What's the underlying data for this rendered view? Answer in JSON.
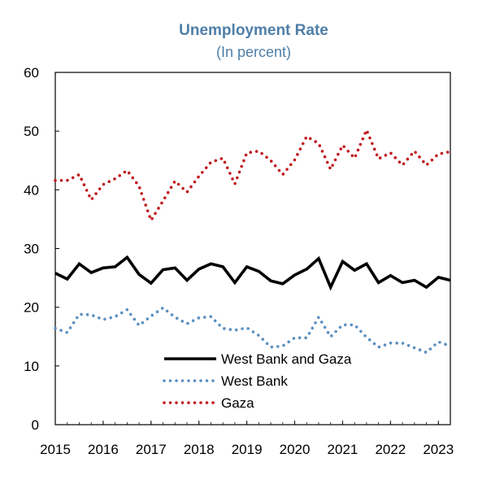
{
  "chart_data": {
    "type": "line",
    "title": "Unemployment Rate",
    "subtitle": "(In percent)",
    "xlabel": "",
    "ylabel": "",
    "ylim": [
      0,
      60
    ],
    "yticks": [
      0,
      10,
      20,
      30,
      40,
      50,
      60
    ],
    "xlim": [
      2015,
      2023.25
    ],
    "xticks": [
      "2015",
      "2016",
      "2017",
      "2018",
      "2019",
      "2020",
      "2021",
      "2022",
      "2023"
    ],
    "grid": false,
    "legend_position": "bottom-center",
    "series": [
      {
        "name": "West Bank and Gaza",
        "color": "#000000",
        "style": "solid",
        "x": [
          2015.0,
          2015.25,
          2015.5,
          2015.75,
          2016.0,
          2016.25,
          2016.5,
          2016.75,
          2017.0,
          2017.25,
          2017.5,
          2017.75,
          2018.0,
          2018.25,
          2018.5,
          2018.75,
          2019.0,
          2019.25,
          2019.5,
          2019.75,
          2020.0,
          2020.25,
          2020.5,
          2020.75,
          2021.0,
          2021.25,
          2021.5,
          2021.75,
          2022.0,
          2022.25,
          2022.5,
          2022.75,
          2023.0,
          2023.25
        ],
        "values": [
          25.8,
          24.8,
          27.4,
          25.9,
          26.7,
          26.9,
          28.5,
          25.6,
          24.1,
          26.4,
          26.7,
          24.6,
          26.5,
          27.4,
          26.9,
          24.2,
          26.9,
          26.1,
          24.5,
          24.0,
          25.5,
          26.5,
          28.3,
          23.4,
          27.8,
          26.3,
          27.4,
          24.2,
          25.4,
          24.2,
          24.6,
          23.4,
          25.1,
          24.6
        ]
      },
      {
        "name": "West Bank",
        "color": "#5b8fc0",
        "style": "dotted",
        "x": [
          2015.0,
          2015.25,
          2015.5,
          2015.75,
          2016.0,
          2016.25,
          2016.5,
          2016.75,
          2017.0,
          2017.25,
          2017.5,
          2017.75,
          2018.0,
          2018.25,
          2018.5,
          2018.75,
          2019.0,
          2019.25,
          2019.5,
          2019.75,
          2020.0,
          2020.25,
          2020.5,
          2020.75,
          2021.0,
          2021.25,
          2021.5,
          2021.75,
          2022.0,
          2022.25,
          2022.5,
          2022.75,
          2023.0,
          2023.25
        ],
        "values": [
          16.4,
          15.7,
          18.8,
          18.7,
          17.9,
          18.4,
          19.6,
          16.9,
          18.5,
          19.9,
          18.3,
          17.2,
          18.2,
          18.4,
          16.4,
          16.1,
          16.5,
          15.2,
          13.2,
          13.4,
          14.8,
          14.8,
          18.3,
          15.0,
          17.0,
          17.0,
          14.9,
          13.2,
          13.9,
          13.9,
          13.1,
          12.3,
          14.1,
          13.4
        ]
      },
      {
        "name": "Gaza",
        "color": "#c0191f",
        "style": "dotted",
        "x": [
          2015.0,
          2015.25,
          2015.5,
          2015.75,
          2016.0,
          2016.25,
          2016.5,
          2016.75,
          2017.0,
          2017.25,
          2017.5,
          2017.75,
          2018.0,
          2018.25,
          2018.5,
          2018.75,
          2019.0,
          2019.25,
          2019.5,
          2019.75,
          2020.0,
          2020.25,
          2020.5,
          2020.75,
          2021.0,
          2021.25,
          2021.5,
          2021.75,
          2022.0,
          2022.25,
          2022.5,
          2022.75,
          2023.0,
          2023.25
        ],
        "values": [
          41.6,
          41.6,
          42.6,
          38.3,
          40.9,
          41.9,
          43.3,
          40.6,
          34.8,
          38.1,
          41.5,
          39.6,
          42.3,
          44.7,
          45.4,
          41.0,
          46.3,
          46.6,
          45.0,
          42.6,
          45.1,
          49.1,
          47.9,
          43.5,
          47.6,
          45.4,
          50.2,
          45.3,
          46.3,
          44.2,
          46.6,
          44.2,
          46.1,
          46.5
        ]
      }
    ]
  }
}
